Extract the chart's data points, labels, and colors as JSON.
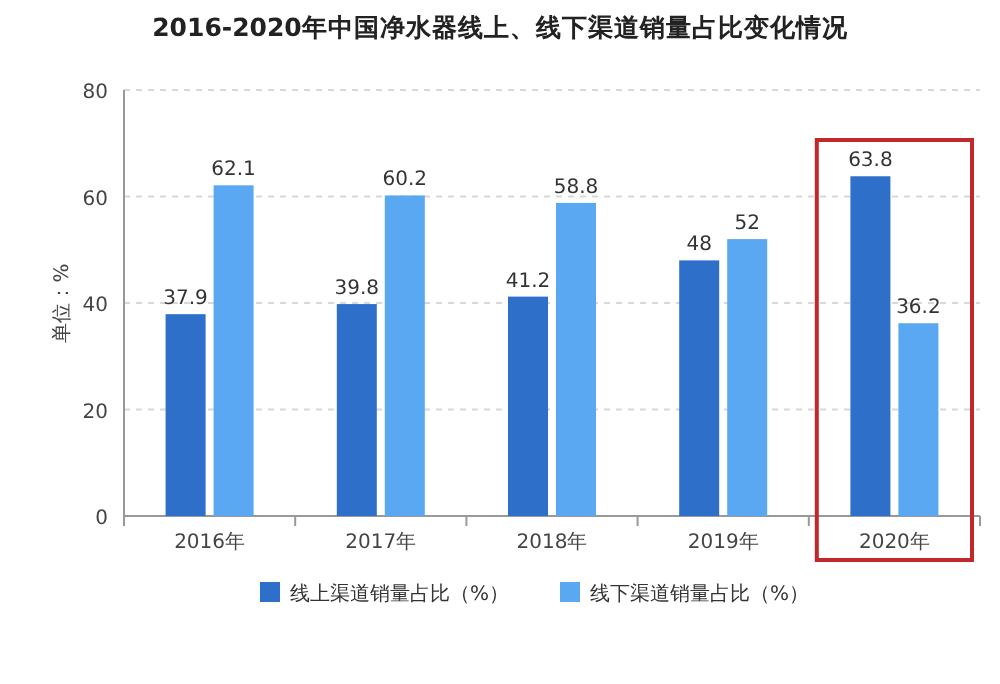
{
  "chart_data": {
    "type": "bar",
    "title": "2016-2020年中国净水器线上、线下渠道销量占比变化情况",
    "ylabel": "单位：%",
    "categories": [
      "2016年",
      "2017年",
      "2018年",
      "2019年",
      "2020年"
    ],
    "series": [
      {
        "name": "线上渠道销量占比（%）",
        "color": "#2e6fc9",
        "values": [
          37.9,
          39.8,
          41.2,
          48,
          63.8
        ]
      },
      {
        "name": "线下渠道销量占比（%）",
        "color": "#5ba8f2",
        "values": [
          62.1,
          60.2,
          58.8,
          52,
          36.2
        ]
      }
    ],
    "ylim": [
      0,
      80
    ],
    "yticks": [
      0,
      20,
      40,
      60,
      80
    ],
    "grid": "y",
    "legend": "bottom",
    "data_labels": true
  }
}
